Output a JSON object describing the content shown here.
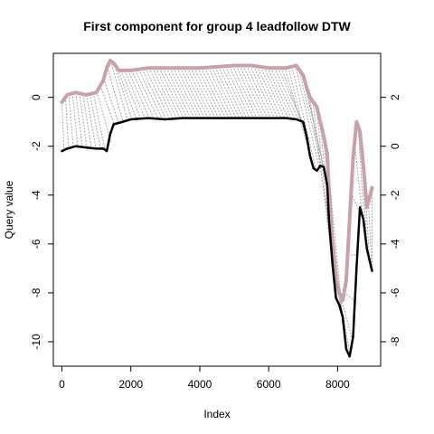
{
  "chart_data": {
    "type": "line",
    "title": "First component for group 4 leadfollow DTW",
    "xlabel": "Index",
    "ylabel": "Query value",
    "xlim": [
      -250,
      9250
    ],
    "ylim_left": [
      -11.0,
      1.8
    ],
    "ylim_right": [
      -9.0,
      3.8
    ],
    "x_ticks": [
      0,
      2000,
      4000,
      6000,
      8000
    ],
    "x_tick_labels": [
      "0",
      "2000",
      "4000",
      "6000",
      "8000"
    ],
    "y_ticks_left": [
      0,
      -2,
      -4,
      -6,
      -8,
      -10
    ],
    "y_tick_labels_left": [
      "0",
      "-2",
      "-4",
      "-6",
      "-8",
      "-10"
    ],
    "y_ticks_right": [
      2,
      0,
      -2,
      -4,
      -6,
      -8
    ],
    "y_tick_labels_right": [
      "2",
      "0",
      "-2",
      "-4",
      "-6",
      "-8"
    ],
    "grid": false,
    "legend": "none",
    "colors": {
      "query": "#000000",
      "reference": "#c8a2a8",
      "warping_lines": "#a9a9a9"
    },
    "series": [
      {
        "axis": "left",
        "x": [
          0,
          150,
          400,
          700,
          1000,
          1200,
          1300,
          1400,
          1500,
          1650,
          2000,
          2500,
          3000,
          3500,
          4000,
          4500,
          5000,
          5500,
          6000,
          6500,
          6800,
          7000,
          7100,
          7200,
          7300,
          7400,
          7500,
          7600,
          7700,
          7750,
          7850,
          7950,
          8050,
          8150,
          8250,
          8350,
          8450,
          8550,
          8650,
          8750,
          8850,
          9000
        ],
        "y": [
          -2.2,
          -2.1,
          -2.0,
          -2.05,
          -2.1,
          -2.1,
          -2.2,
          -1.5,
          -1.1,
          -1.05,
          -0.9,
          -0.85,
          -0.9,
          -0.85,
          -0.85,
          -0.85,
          -0.85,
          -0.85,
          -0.85,
          -0.85,
          -0.9,
          -1.0,
          -1.6,
          -2.4,
          -2.9,
          -3.0,
          -2.8,
          -2.85,
          -3.6,
          -5.0,
          -6.8,
          -8.2,
          -8.5,
          -9.0,
          -10.3,
          -10.6,
          -9.8,
          -7.0,
          -4.5,
          -5.0,
          -6.2,
          -7.1
        ]
      },
      {
        "axis": "right",
        "x": [
          0,
          150,
          400,
          700,
          1000,
          1200,
          1300,
          1400,
          1500,
          1650,
          2000,
          2500,
          3000,
          3500,
          4000,
          4500,
          5000,
          5500,
          6000,
          6500,
          6800,
          7000,
          7100,
          7200,
          7300,
          7400,
          7500,
          7600,
          7700,
          7750,
          7850,
          7950,
          8050,
          8150,
          8250,
          8350,
          8450,
          8550,
          8650,
          8750,
          8850,
          9000
        ],
        "y": [
          1.8,
          2.1,
          2.2,
          2.1,
          2.2,
          2.7,
          3.2,
          3.5,
          3.4,
          3.1,
          3.1,
          3.2,
          3.2,
          3.2,
          3.2,
          3.25,
          3.3,
          3.3,
          3.2,
          3.2,
          3.3,
          2.9,
          2.4,
          2.0,
          1.8,
          1.6,
          1.0,
          0.4,
          -0.3,
          -1.8,
          -3.9,
          -5.5,
          -6.0,
          -6.3,
          -5.5,
          -3.0,
          -0.5,
          1.0,
          0.6,
          -0.8,
          -2.5,
          -1.7
        ]
      }
    ]
  }
}
